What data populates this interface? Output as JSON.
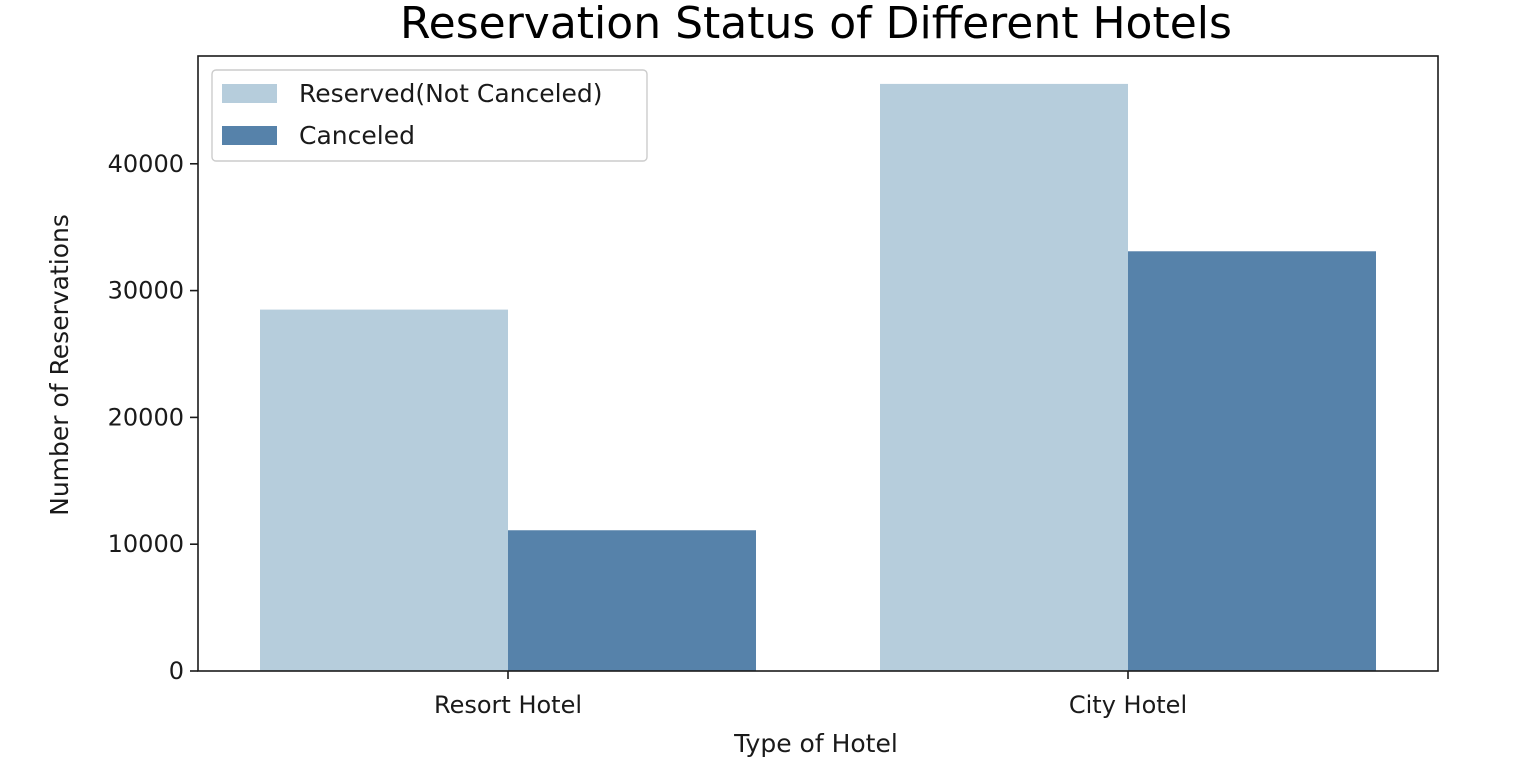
{
  "chart_data": {
    "type": "bar",
    "title": "Reservation Status of Different Hotels",
    "xlabel": "Type of Hotel",
    "ylabel": "Number of Reservations",
    "categories": [
      "Resort Hotel",
      "City Hotel"
    ],
    "series": [
      {
        "name": "Reserved(Not Canceled)",
        "values": [
          28500,
          46300
        ],
        "color": "#b6cddc"
      },
      {
        "name": "Canceled",
        "values": [
          11100,
          33100
        ],
        "color": "#5682aa"
      }
    ],
    "ylim": [
      0,
      48500
    ],
    "yticks": [
      0,
      10000,
      20000,
      30000,
      40000
    ],
    "ytick_labels": [
      "0",
      "10000",
      "20000",
      "30000",
      "40000"
    ],
    "grid": false,
    "legend_position": "top-left"
  }
}
